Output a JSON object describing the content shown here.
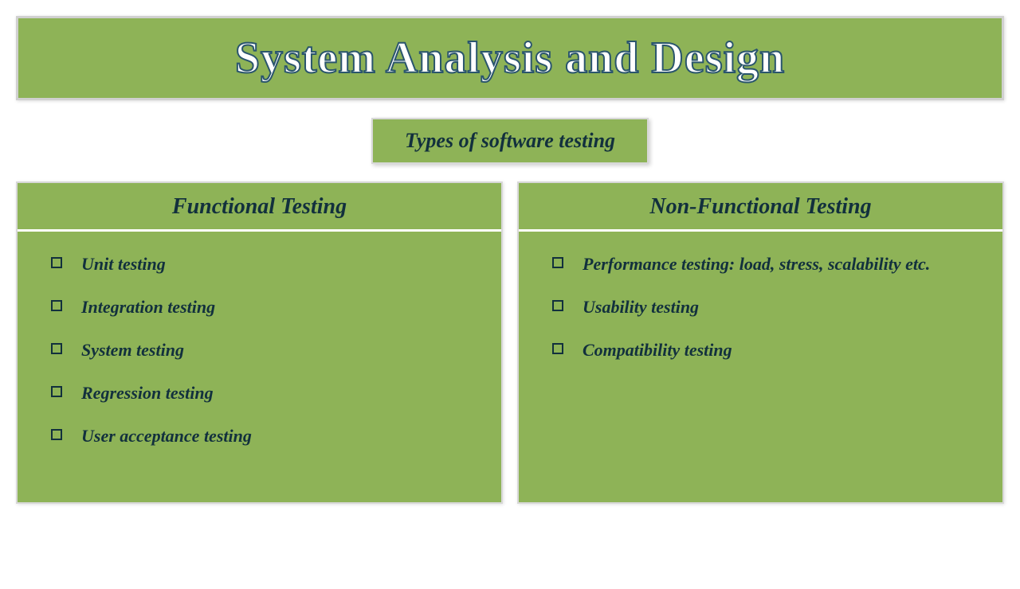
{
  "colors": {
    "panel_bg": "#8eb357",
    "border": "#d8d8d8",
    "text_dark": "#12303d",
    "title_fill": "#ffffff",
    "title_stroke": "#2a556d",
    "page_bg": "#ffffff"
  },
  "typography": {
    "title_family": "Comic Sans MS",
    "title_size_pt": 42,
    "body_family": "Georgia",
    "body_italic": true,
    "body_bold": true,
    "header_size_pt": 21,
    "item_size_pt": 17
  },
  "title": "System Analysis and Design",
  "subtitle": "Types of software testing",
  "columns": [
    {
      "header": "Functional Testing",
      "items": [
        "Unit testing",
        "Integration testing",
        "System testing",
        "Regression testing",
        "User acceptance testing"
      ]
    },
    {
      "header": "Non-Functional Testing",
      "items": [
        "Performance testing: load, stress, scalability etc.",
        "Usability testing",
        "Compatibility testing"
      ]
    }
  ]
}
